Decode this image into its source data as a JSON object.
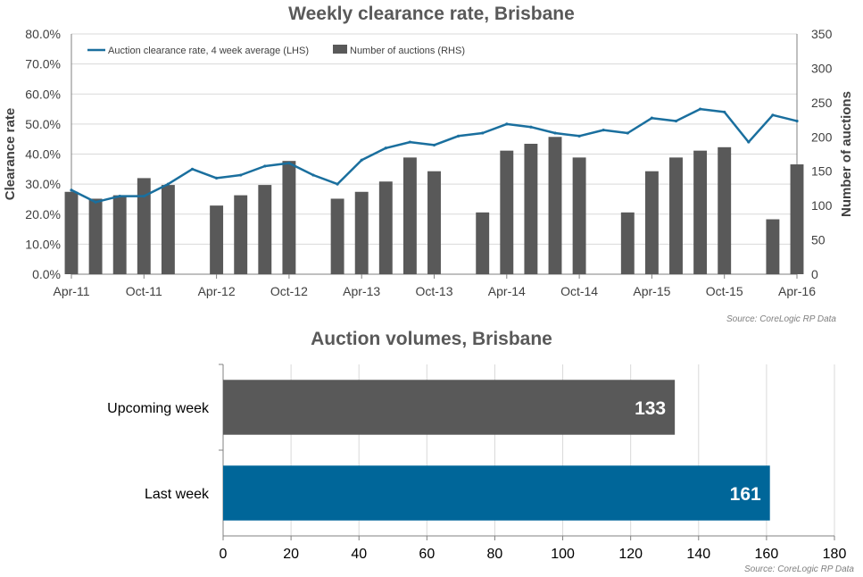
{
  "chart_data": [
    {
      "type": "line+bar",
      "title": "Weekly clearance rate, Brisbane",
      "source": "Source: CoreLogic  RP Data",
      "ylabel_left": "Clearance rate",
      "ylabel_right": "Number of auctions",
      "ylim_left": [
        0,
        0.8
      ],
      "ylim_right": [
        0,
        350
      ],
      "yticks_left": [
        "0.0%",
        "10.0%",
        "20.0%",
        "30.0%",
        "40.0%",
        "50.0%",
        "60.0%",
        "70.0%",
        "80.0%"
      ],
      "yticks_right": [
        "0",
        "50",
        "100",
        "150",
        "200",
        "250",
        "300",
        "350"
      ],
      "xticks": [
        "Apr-11",
        "Oct-11",
        "Apr-12",
        "Oct-12",
        "Apr-13",
        "Oct-13",
        "Apr-14",
        "Oct-14",
        "Apr-15",
        "Oct-15",
        "Apr-16"
      ],
      "legend": [
        "Auction clearance rate, 4 week average (LHS)",
        "Number of auctions (RHS)"
      ],
      "legend_position": "top-left",
      "colors": {
        "line": "#1a6f9e",
        "bars": "#595959"
      },
      "series": [
        {
          "name": "Auction clearance rate, 4 week average (LHS)",
          "x": [
            "Apr-11",
            "Jun-11",
            "Aug-11",
            "Oct-11",
            "Dec-11",
            "Feb-12",
            "Apr-12",
            "Jun-12",
            "Aug-12",
            "Oct-12",
            "Dec-12",
            "Feb-13",
            "Apr-13",
            "Jun-13",
            "Aug-13",
            "Oct-13",
            "Dec-13",
            "Feb-14",
            "Apr-14",
            "Jun-14",
            "Aug-14",
            "Oct-14",
            "Dec-14",
            "Feb-15",
            "Apr-15",
            "Jun-15",
            "Aug-15",
            "Oct-15",
            "Dec-15",
            "Feb-16",
            "Apr-16"
          ],
          "values": [
            0.28,
            0.24,
            0.26,
            0.26,
            0.3,
            0.35,
            0.32,
            0.33,
            0.36,
            0.37,
            0.33,
            0.3,
            0.38,
            0.42,
            0.44,
            0.43,
            0.46,
            0.47,
            0.5,
            0.49,
            0.47,
            0.46,
            0.48,
            0.47,
            0.52,
            0.51,
            0.55,
            0.54,
            0.44,
            0.53,
            0.51
          ]
        },
        {
          "name": "Number of auctions (RHS)",
          "x": [
            "Apr-11",
            "Jun-11",
            "Aug-11",
            "Oct-11",
            "Dec-11",
            "Feb-12",
            "Apr-12",
            "Jun-12",
            "Aug-12",
            "Oct-12",
            "Dec-12",
            "Feb-13",
            "Apr-13",
            "Jun-13",
            "Aug-13",
            "Oct-13",
            "Dec-13",
            "Feb-14",
            "Apr-14",
            "Jun-14",
            "Aug-14",
            "Oct-14",
            "Dec-14",
            "Feb-15",
            "Apr-15",
            "Jun-15",
            "Aug-15",
            "Oct-15",
            "Dec-15",
            "Feb-16",
            "Apr-16"
          ],
          "values": [
            120,
            110,
            115,
            140,
            130,
            0,
            100,
            115,
            130,
            165,
            0,
            110,
            120,
            135,
            170,
            150,
            0,
            90,
            180,
            190,
            200,
            170,
            0,
            90,
            150,
            170,
            180,
            185,
            0,
            80,
            160
          ]
        }
      ]
    },
    {
      "type": "bar",
      "orientation": "horizontal",
      "title": "Auction volumes, Brisbane",
      "source": "Source: CoreLogic  RP Data",
      "categories": [
        "Upcoming week",
        "Last week"
      ],
      "values": [
        133,
        161
      ],
      "xlim": [
        0,
        180
      ],
      "xticks": [
        "0",
        "20",
        "40",
        "60",
        "80",
        "100",
        "120",
        "140",
        "160",
        "180"
      ],
      "colors": [
        "#595959",
        "#006699"
      ]
    }
  ]
}
